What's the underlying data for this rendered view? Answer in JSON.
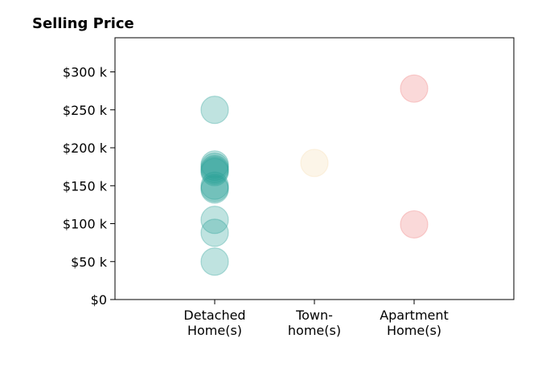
{
  "chart_data": {
    "type": "scatter",
    "title": "Selling Price",
    "xlabel": "",
    "ylabel": "",
    "categories": [
      [
        "Detached",
        "Home(s)"
      ],
      [
        "Town-",
        "home(s)"
      ],
      [
        "Apartment",
        "Home(s)"
      ]
    ],
    "xlim": [
      0,
      4
    ],
    "ylim": [
      0,
      345
    ],
    "yticks": [
      0,
      50,
      100,
      150,
      200,
      250,
      300
    ],
    "ytick_labels": [
      "$0",
      "$50 k",
      "$100 k",
      "$150 k",
      "$200 k",
      "$250 k",
      "$300 k"
    ],
    "grid": false,
    "series": [
      {
        "category": 1,
        "color": "#2aa198",
        "values": [
          250,
          178,
          175,
          172,
          170,
          168,
          150,
          147,
          145,
          105,
          88,
          50
        ]
      },
      {
        "category": 2,
        "color": "#f5deb3",
        "values": [
          180
        ]
      },
      {
        "category": 3,
        "color": "#f08080",
        "values": [
          278,
          99
        ]
      }
    ]
  }
}
